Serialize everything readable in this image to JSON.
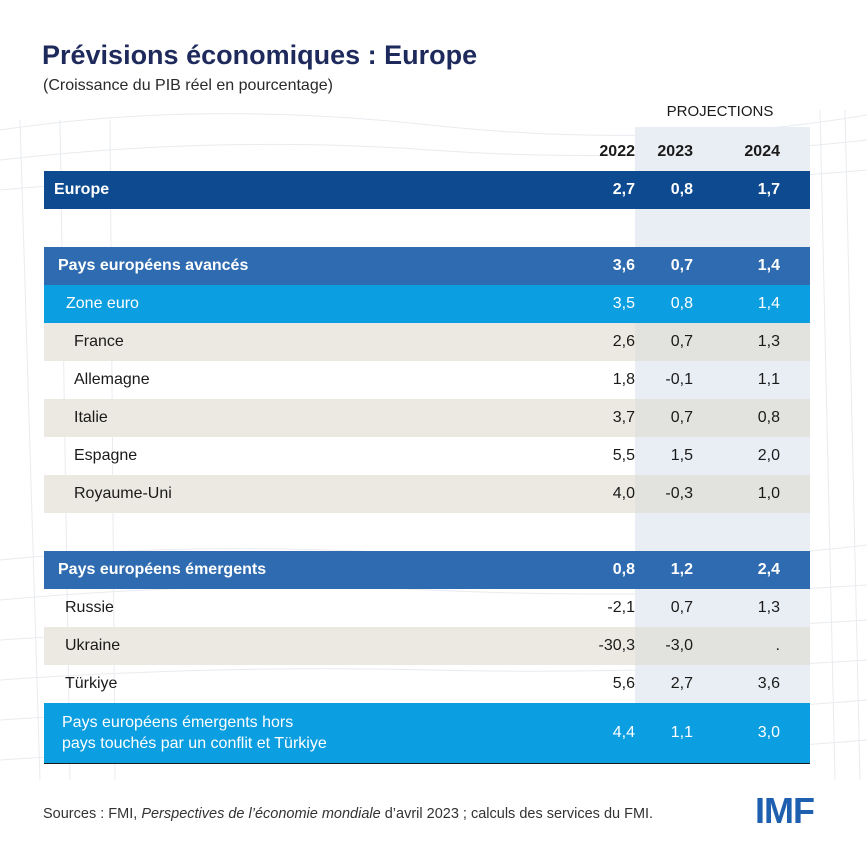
{
  "title": "Prévisions économiques : Europe",
  "subtitle": "(Croissance du PIB réel en pourcentage)",
  "projections_label": "PROJECTIONS",
  "chart_data": {
    "type": "table",
    "title": "Prévisions économiques : Europe",
    "subtitle": "(Croissance du PIB réel en pourcentage)",
    "columns": [
      "2022",
      "2023",
      "2024"
    ],
    "projection_columns": [
      "2023",
      "2024"
    ],
    "rows": [
      {
        "name": "Europe",
        "values": [
          "2,7",
          "0,8",
          "1,7"
        ],
        "style": "dark"
      },
      {
        "name": "Pays européens avancés",
        "values": [
          "3,6",
          "0,7",
          "1,4"
        ],
        "style": "blue"
      },
      {
        "name": "Zone euro",
        "values": [
          "3,5",
          "0,8",
          "1,4"
        ],
        "style": "cyan"
      },
      {
        "name": "France",
        "values": [
          "2,6",
          "0,7",
          "1,3"
        ],
        "style": "beige"
      },
      {
        "name": "Allemagne",
        "values": [
          "1,8",
          "-0,1",
          "1,1"
        ],
        "style": "white"
      },
      {
        "name": "Italie",
        "values": [
          "3,7",
          "0,7",
          "0,8"
        ],
        "style": "beige"
      },
      {
        "name": "Espagne",
        "values": [
          "5,5",
          "1,5",
          "2,0"
        ],
        "style": "white"
      },
      {
        "name": "Royaume-Uni",
        "values": [
          "4,0",
          "-0,3",
          "1,0"
        ],
        "style": "beige"
      },
      {
        "name": "Pays européens émergents",
        "values": [
          "0,8",
          "1,2",
          "2,4"
        ],
        "style": "blue"
      },
      {
        "name": "Russie",
        "values": [
          "-2,1",
          "0,7",
          "1,3"
        ],
        "style": "white"
      },
      {
        "name": "Ukraine",
        "values": [
          "-30,3",
          "-3,0",
          "."
        ],
        "style": "beige"
      },
      {
        "name": "Türkiye",
        "values": [
          "5,6",
          "2,7",
          "3,6"
        ],
        "style": "white"
      },
      {
        "name_line1": "Pays européens émergents hors",
        "name_line2": "pays touchés par un conflit et Türkiye",
        "values": [
          "4,4",
          "1,1",
          "3,0"
        ],
        "style": "cyan"
      }
    ]
  },
  "footer": {
    "prefix": "Sources : FMI, ",
    "publication": "Perspectives de l’économie mondiale",
    "suffix": " d’avril 2023 ; calculs des services du FMI."
  },
  "logo_text": "IMF"
}
